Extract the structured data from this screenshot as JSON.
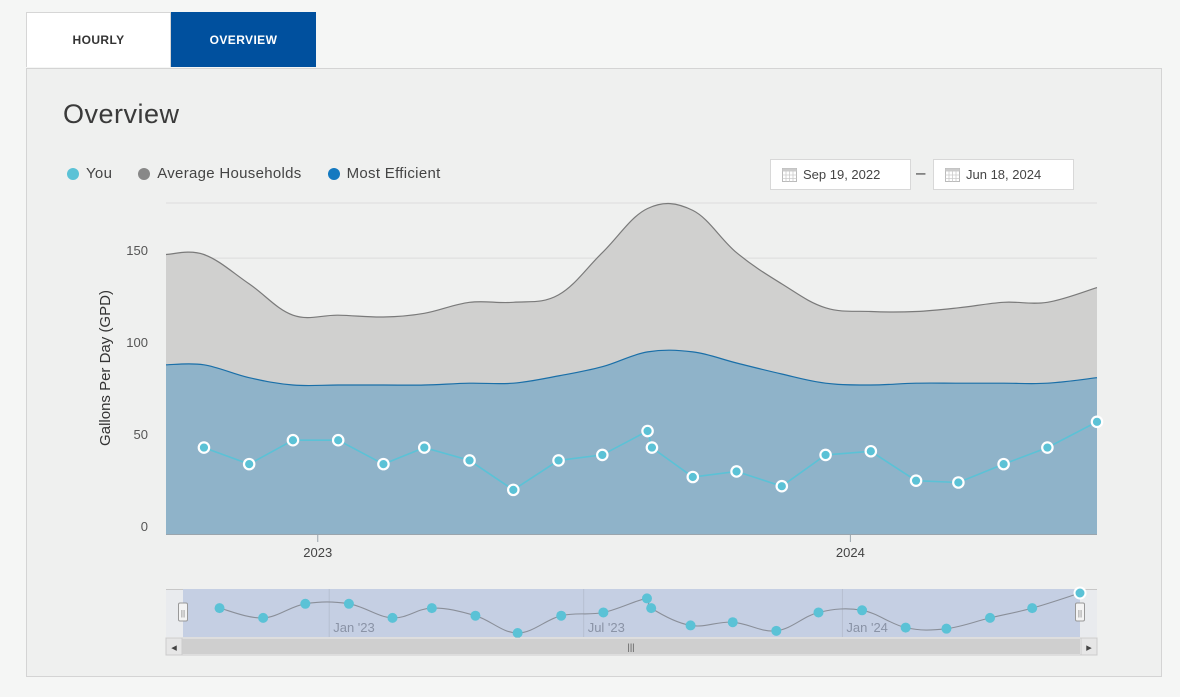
{
  "tabs": [
    {
      "label": "HOURLY",
      "active": false
    },
    {
      "label": "OVERVIEW",
      "active": true
    }
  ],
  "colors": {
    "you": "#5bc2d6",
    "average": "#888888",
    "efficient": "#1479c0",
    "active_tab": "#00509e"
  },
  "overview": {
    "title": "Overview",
    "start_date": "Sep 19, 2022",
    "end_date": "Jun 18, 2024",
    "date_separator": "–"
  },
  "chart_data": {
    "type": "area",
    "title": "",
    "ylabel": "Gallons Per Day (GPD)",
    "xlabel": "",
    "ylim": [
      0,
      180
    ],
    "yticks": [
      0,
      50,
      100,
      150
    ],
    "xticks": [
      {
        "label": "2023",
        "date": "2023-01-01"
      },
      {
        "label": "2024",
        "date": "2024-01-01"
      }
    ],
    "grid": true,
    "legend_position": "top-left",
    "series": [
      {
        "name": "You",
        "style": "line-markers",
        "points": [
          {
            "date": "2022-10-15",
            "value": 47
          },
          {
            "date": "2022-11-15",
            "value": 38
          },
          {
            "date": "2022-12-15",
            "value": 51
          },
          {
            "date": "2023-01-15",
            "value": 51
          },
          {
            "date": "2023-02-15",
            "value": 38
          },
          {
            "date": "2023-03-15",
            "value": 47
          },
          {
            "date": "2023-04-15",
            "value": 40
          },
          {
            "date": "2023-05-15",
            "value": 24
          },
          {
            "date": "2023-06-15",
            "value": 40
          },
          {
            "date": "2023-07-15",
            "value": 43
          },
          {
            "date": "2023-08-15",
            "value": 56
          },
          {
            "date": "2023-08-18",
            "value": 47
          },
          {
            "date": "2023-09-15",
            "value": 31
          },
          {
            "date": "2023-10-15",
            "value": 34
          },
          {
            "date": "2023-11-15",
            "value": 26
          },
          {
            "date": "2023-12-15",
            "value": 43
          },
          {
            "date": "2024-01-15",
            "value": 45
          },
          {
            "date": "2024-02-15",
            "value": 29
          },
          {
            "date": "2024-03-15",
            "value": 28
          },
          {
            "date": "2024-04-15",
            "value": 38
          },
          {
            "date": "2024-05-15",
            "value": 47
          },
          {
            "date": "2024-06-18",
            "value": 61
          }
        ]
      },
      {
        "name": "Average Households",
        "style": "area",
        "points": [
          {
            "date": "2022-09-19",
            "value": 152
          },
          {
            "date": "2022-10-15",
            "value": 152
          },
          {
            "date": "2022-11-15",
            "value": 136
          },
          {
            "date": "2022-12-15",
            "value": 119
          },
          {
            "date": "2023-01-15",
            "value": 119
          },
          {
            "date": "2023-02-15",
            "value": 118
          },
          {
            "date": "2023-03-15",
            "value": 120
          },
          {
            "date": "2023-04-15",
            "value": 126
          },
          {
            "date": "2023-05-15",
            "value": 126
          },
          {
            "date": "2023-06-15",
            "value": 130
          },
          {
            "date": "2023-07-15",
            "value": 153
          },
          {
            "date": "2023-08-15",
            "value": 177
          },
          {
            "date": "2023-09-15",
            "value": 176
          },
          {
            "date": "2023-10-15",
            "value": 153
          },
          {
            "date": "2023-11-15",
            "value": 136
          },
          {
            "date": "2023-12-15",
            "value": 123
          },
          {
            "date": "2024-01-15",
            "value": 121
          },
          {
            "date": "2024-02-15",
            "value": 121
          },
          {
            "date": "2024-03-15",
            "value": 123
          },
          {
            "date": "2024-04-15",
            "value": 126
          },
          {
            "date": "2024-05-15",
            "value": 126
          },
          {
            "date": "2024-06-18",
            "value": 134
          }
        ]
      },
      {
        "name": "Most Efficient",
        "style": "area",
        "points": [
          {
            "date": "2022-09-19",
            "value": 92
          },
          {
            "date": "2022-10-15",
            "value": 92
          },
          {
            "date": "2022-11-15",
            "value": 85
          },
          {
            "date": "2022-12-15",
            "value": 81
          },
          {
            "date": "2023-01-15",
            "value": 81
          },
          {
            "date": "2023-02-15",
            "value": 81
          },
          {
            "date": "2023-03-15",
            "value": 81
          },
          {
            "date": "2023-04-15",
            "value": 82
          },
          {
            "date": "2023-05-15",
            "value": 82
          },
          {
            "date": "2023-06-15",
            "value": 86
          },
          {
            "date": "2023-07-15",
            "value": 91
          },
          {
            "date": "2023-08-15",
            "value": 99
          },
          {
            "date": "2023-09-15",
            "value": 99
          },
          {
            "date": "2023-10-15",
            "value": 93
          },
          {
            "date": "2023-11-15",
            "value": 87
          },
          {
            "date": "2023-12-15",
            "value": 82
          },
          {
            "date": "2024-01-15",
            "value": 81
          },
          {
            "date": "2024-02-15",
            "value": 82
          },
          {
            "date": "2024-03-15",
            "value": 82
          },
          {
            "date": "2024-04-15",
            "value": 82
          },
          {
            "date": "2024-05-15",
            "value": 82
          },
          {
            "date": "2024-06-18",
            "value": 85
          }
        ]
      }
    ]
  },
  "navigator": {
    "labels": [
      {
        "label": "Jan '23",
        "date": "2023-01-01"
      },
      {
        "label": "Jul '23",
        "date": "2023-07-01"
      },
      {
        "label": "Jan '24",
        "date": "2024-01-01"
      }
    ],
    "handle_glyph": "||",
    "scroll_left": "◂",
    "scroll_right": "▸",
    "scroll_grip": "|||"
  }
}
